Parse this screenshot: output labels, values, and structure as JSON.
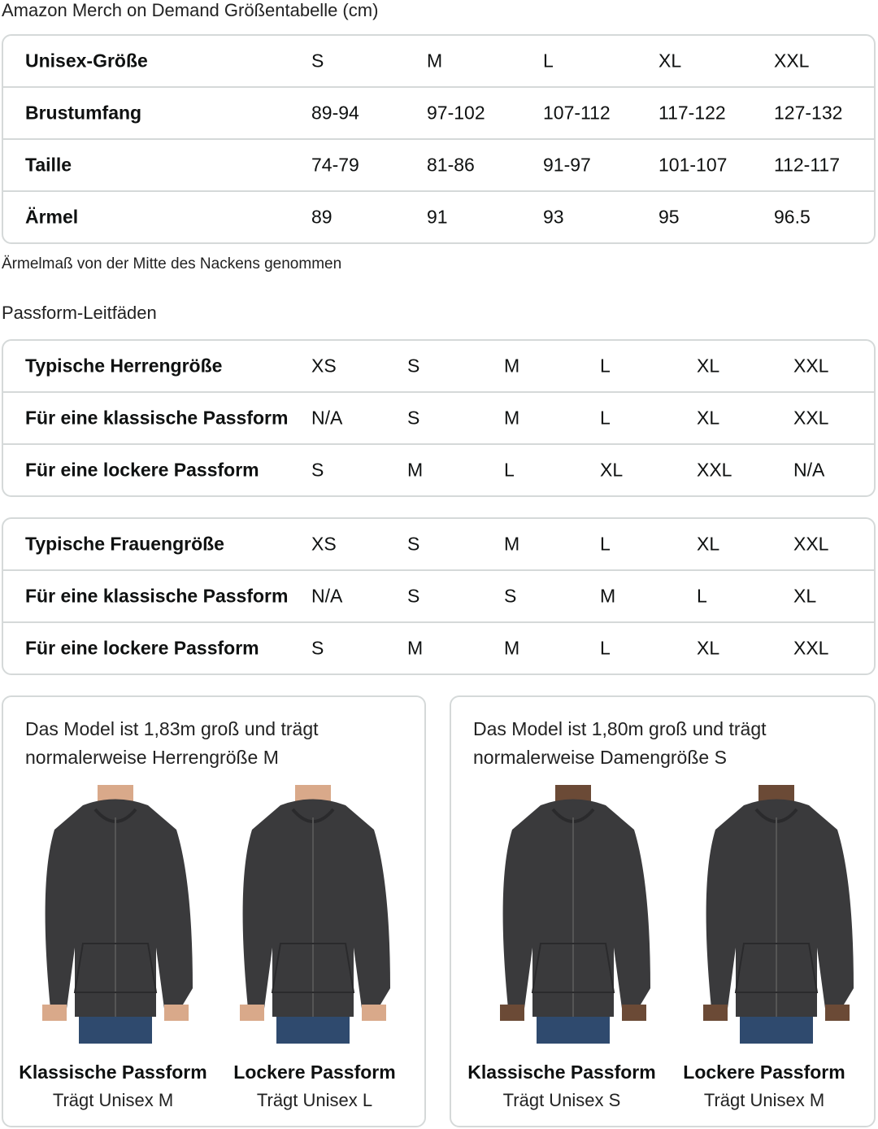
{
  "title": "Amazon Merch on Demand Größentabelle (cm)",
  "size_table": {
    "rows": [
      [
        "Unisex-Größe",
        "S",
        "M",
        "L",
        "XL",
        "XXL"
      ],
      [
        "Brustumfang",
        "89-94",
        "97-102",
        "107-112",
        "117-122",
        "127-132"
      ],
      [
        "Taille",
        "74-79",
        "81-86",
        "91-97",
        "101-107",
        "112-117"
      ],
      [
        "Ärmel",
        "89",
        "91",
        "93",
        "95",
        "96.5"
      ]
    ]
  },
  "sleeve_note": "Ärmelmaß von der Mitte des Nackens genommen",
  "fit_title": "Passform-Leitfäden",
  "men_table": {
    "rows": [
      [
        "Typische Herrengröße",
        "XS",
        "S",
        "M",
        "L",
        "XL",
        "XXL"
      ],
      [
        "Für eine klassische Passform",
        "N/A",
        "S",
        "M",
        "L",
        "XL",
        "XXL"
      ],
      [
        "Für eine lockere Passform",
        "S",
        "M",
        "L",
        "XL",
        "XXL",
        "N/A"
      ]
    ]
  },
  "women_table": {
    "rows": [
      [
        "Typische Frauengröße",
        "XS",
        "S",
        "M",
        "L",
        "XL",
        "XXL"
      ],
      [
        "Für eine klassische Passform",
        "N/A",
        "S",
        "S",
        "M",
        "L",
        "XL"
      ],
      [
        "Für eine lockere Passform",
        "S",
        "M",
        "M",
        "L",
        "XL",
        "XXL"
      ]
    ]
  },
  "cards": [
    {
      "text_line1": "Das Model ist 1,83m groß und trägt",
      "text_line2": "normalerweise Herrengröße M",
      "photos": [
        {
          "caption": "Klassische Passform",
          "sub": "Trägt Unisex M",
          "skin": "#d9a98a"
        },
        {
          "caption": "Lockere Passform",
          "sub": "Trägt Unisex L",
          "skin": "#d9a98a"
        }
      ]
    },
    {
      "text_line1": "Das Model ist 1,80m groß und trägt",
      "text_line2": "normalerweise Damengröße S",
      "photos": [
        {
          "caption": "Klassische Passform",
          "sub": "Trägt Unisex S",
          "skin": "#6b4a36"
        },
        {
          "caption": "Lockere Passform",
          "sub": "Trägt Unisex M",
          "skin": "#6b4a36"
        }
      ]
    }
  ],
  "colors": {
    "border": "#d5d9d9",
    "hoodie": "#3a3a3c",
    "jeans": "#2f4a6e"
  }
}
